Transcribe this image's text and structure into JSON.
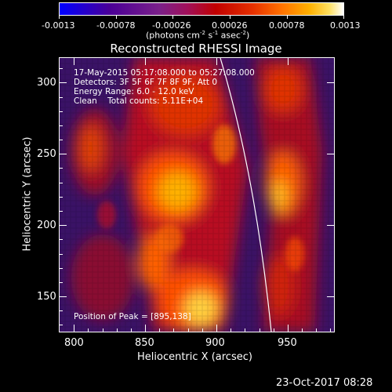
{
  "colorbar": {
    "ticks": [
      "-0.0013",
      "-0.00078",
      "-0.00026",
      "0.00026",
      "0.00078",
      "0.0013"
    ],
    "units_main": "(photons cm",
    "units_sup1": "-2",
    "units_mid": " s",
    "units_sup2": "-1",
    "units_end": " asec",
    "units_sup3": "-2",
    "units_close": ")"
  },
  "plot": {
    "title": "Reconstructed RHESSI Image",
    "info": {
      "time": "17-May-2015 05:17:08.000 to 05:27:08.000",
      "detectors": "Detectors: 3F 5F 6F 7F 8F 9F, Att 0",
      "energy": "Energy Range: 6.0 - 12.0 keV",
      "clean": "Clean    Total counts: 5.11E+04"
    },
    "peak": "Position of Peak = [895,138]",
    "xlabel": "Heliocentric X (arcsec)",
    "ylabel": "Heliocentric Y (arcsec)",
    "xticks": [
      "800",
      "850",
      "900",
      "950"
    ],
    "yticks": [
      "150",
      "200",
      "250",
      "300"
    ]
  },
  "footer": {
    "date": "23-Oct-2017 08:28"
  },
  "colors": {
    "background": "#000000",
    "limb": "#ffffff"
  }
}
